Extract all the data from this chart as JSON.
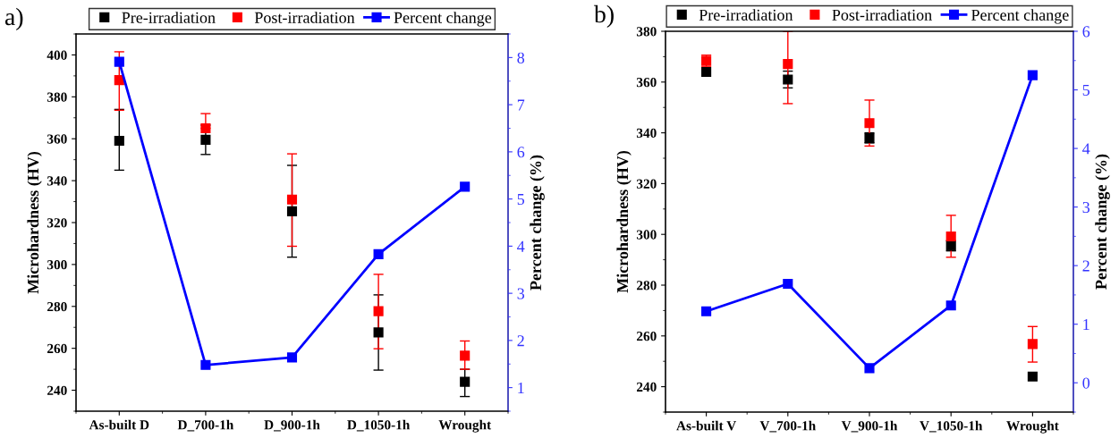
{
  "chart_data": [
    {
      "type": "scatter",
      "title": "a)",
      "ylabel": "Microhardness (HV)",
      "y2label": "Percent change (%)",
      "categories": [
        "As-built D",
        "D_700-1h",
        "D_900-1h",
        "D_1050-1h",
        "Wrought"
      ],
      "ylim": [
        230,
        410
      ],
      "yticks": [
        240,
        260,
        280,
        300,
        320,
        340,
        360,
        380,
        400
      ],
      "y2lim": [
        0.5,
        8.5
      ],
      "y2ticks": [
        1,
        2,
        3,
        4,
        5,
        6,
        7,
        8
      ],
      "legend": "top",
      "marker": "square",
      "grid": false,
      "series": [
        {
          "name": "Pre-irradiation",
          "color": "#000000",
          "values": [
            359,
            359.5,
            325.4,
            267.6,
            244
          ],
          "errors": [
            [
              345,
              374
            ],
            [
              352.5,
              366.5
            ],
            [
              303.5,
              347.3
            ],
            [
              249.6,
              285.5
            ],
            [
              237,
              250
            ]
          ]
        },
        {
          "name": "Post-irradiation",
          "color": "#ff0000",
          "values": [
            388,
            365,
            331,
            277.7,
            256.5
          ],
          "errors": [
            [
              373.6,
              401.5
            ],
            [
              365,
              372
            ],
            [
              308.7,
              352.8
            ],
            [
              259.8,
              295.3
            ],
            [
              250,
              263.5
            ]
          ]
        },
        {
          "name": "Percent change",
          "type": "line",
          "axis": "y2",
          "color": "#0000ff",
          "values": [
            7.91,
            1.48,
            1.64,
            3.83,
            5.26
          ]
        }
      ]
    },
    {
      "type": "scatter",
      "title": "b)",
      "ylabel": "Microhardness (HV)",
      "y2label": "Percent change (%)",
      "categories": [
        "As-built V",
        "V_700-1h",
        "V_900-1h",
        "V_1050-1h",
        "Wrought"
      ],
      "ylim": [
        230,
        380
      ],
      "yticks": [
        240,
        260,
        280,
        300,
        320,
        340,
        360,
        380
      ],
      "y2lim": [
        -0.5,
        6
      ],
      "y2ticks": [
        0,
        1,
        2,
        3,
        4,
        5,
        6
      ],
      "legend": "top",
      "marker": "square",
      "grid": false,
      "series": [
        {
          "name": "Pre-irradiation",
          "color": "#000000",
          "values": [
            364,
            361,
            337.9,
            295.5,
            244
          ],
          "errors": [
            null,
            [
              357.7,
              364.3
            ],
            [
              336,
              340
            ],
            [
              293.5,
              297.5
            ],
            null
          ]
        },
        {
          "name": "Post-irradiation",
          "color": "#ff0000",
          "values": [
            368.4,
            367.1,
            343.8,
            299.2,
            256.8
          ],
          "errors": [
            [
              366.2,
              370.6
            ],
            [
              351.5,
              380
            ],
            [
              334.8,
              352.9
            ],
            [
              291,
              307.5
            ],
            [
              249.7,
              263.7
            ]
          ]
        },
        {
          "name": "Percent change",
          "type": "line",
          "axis": "y2",
          "color": "#0000ff",
          "values": [
            1.22,
            1.69,
            0.25,
            1.32,
            5.25
          ]
        }
      ]
    }
  ]
}
